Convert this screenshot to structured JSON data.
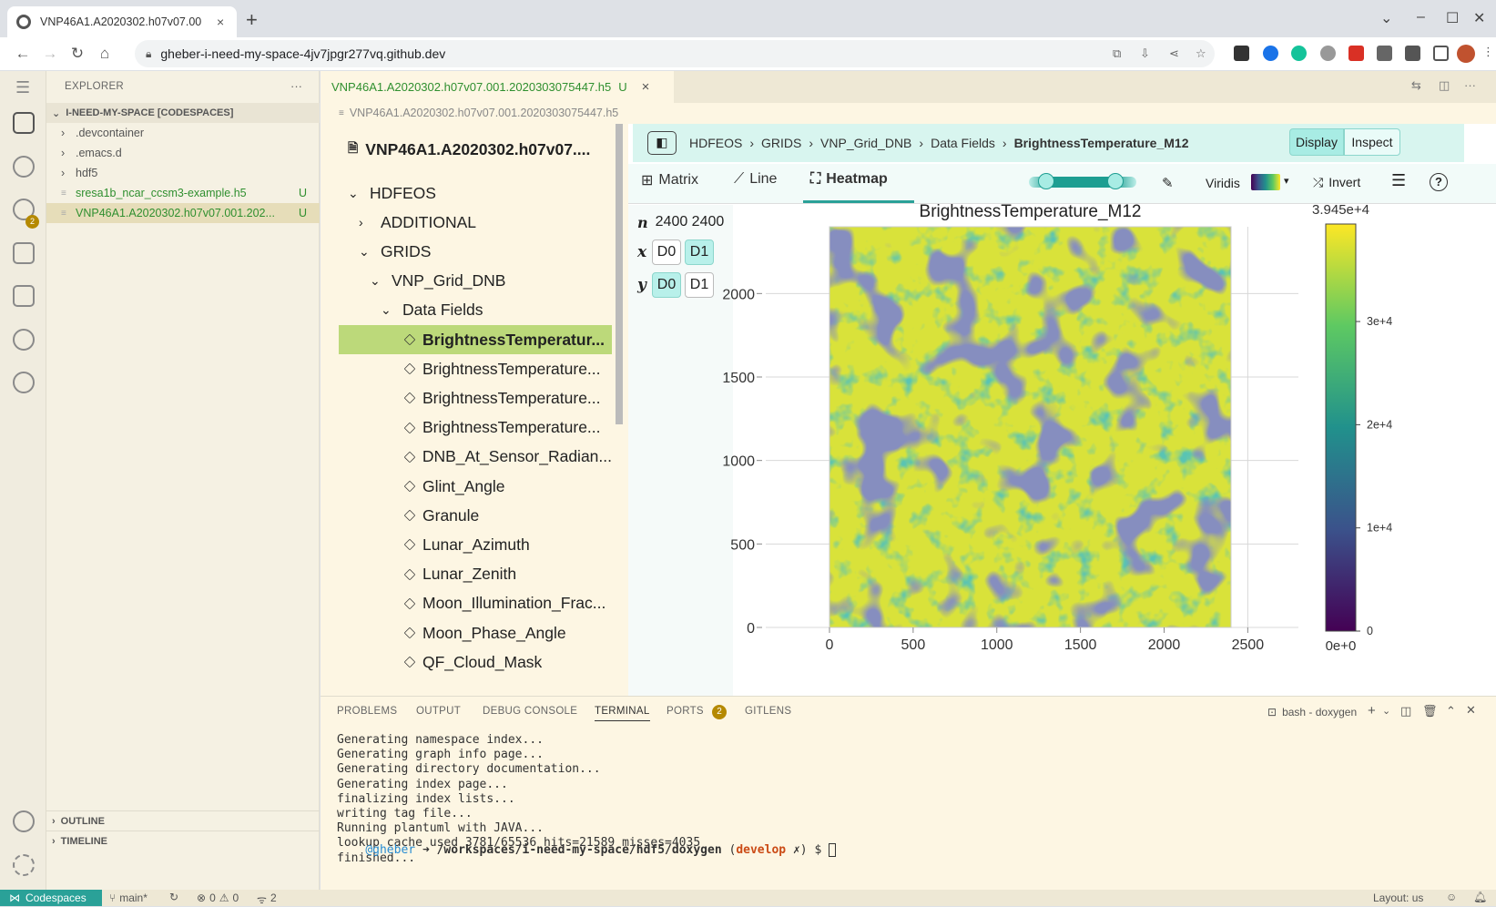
{
  "browser": {
    "tab_title": "VNP46A1.A2020302.h07v07.00",
    "new_tab": "+",
    "url": "gheber-i-need-my-space-4jv7jpgr277vq.github.dev"
  },
  "activity": {
    "scm_badge": "2"
  },
  "explorer": {
    "title": "EXPLORER",
    "more": "···",
    "root": "I-NEED-MY-SPACE [CODESPACES]",
    "items": [
      {
        "label": ".devcontainer",
        "status": "",
        "chev": "›"
      },
      {
        "label": ".emacs.d",
        "status": "",
        "chev": "›"
      },
      {
        "label": "hdf5",
        "status": "",
        "chev": "›"
      },
      {
        "label": "sresa1b_ncar_ccsm3-example.h5",
        "status": "U",
        "chev": ""
      },
      {
        "label": "VNP46A1.A2020302.h07v07.001.202...",
        "status": "U",
        "chev": ""
      }
    ],
    "outline": "OUTLINE",
    "timeline": "TIMELINE"
  },
  "editor": {
    "tab_label": "VNP46A1.A2020302.h07v07.001.2020303075447.h5",
    "tab_status": "U",
    "close": "×",
    "breadcrumb": "VNP46A1.A2020302.h07v07.001.2020303075447.h5"
  },
  "h5web": {
    "file_title": "VNP46A1.A2020302.h07v07....",
    "tree": [
      {
        "label": "HDFEOS",
        "chev": "⌄",
        "ds": false
      },
      {
        "label": "ADDITIONAL",
        "chev": "›",
        "ds": false
      },
      {
        "label": "GRIDS",
        "chev": "⌄",
        "ds": false
      },
      {
        "label": "VNP_Grid_DNB",
        "chev": "⌄",
        "ds": false
      },
      {
        "label": "Data Fields",
        "chev": "⌄",
        "ds": false
      },
      {
        "label": "BrightnessTemperatur...",
        "chev": "",
        "ds": true
      },
      {
        "label": "BrightnessTemperature...",
        "chev": "",
        "ds": true
      },
      {
        "label": "BrightnessTemperature...",
        "chev": "",
        "ds": true
      },
      {
        "label": "BrightnessTemperature...",
        "chev": "",
        "ds": true
      },
      {
        "label": "DNB_At_Sensor_Radian...",
        "chev": "",
        "ds": true
      },
      {
        "label": "Glint_Angle",
        "chev": "",
        "ds": true
      },
      {
        "label": "Granule",
        "chev": "",
        "ds": true
      },
      {
        "label": "Lunar_Azimuth",
        "chev": "",
        "ds": true
      },
      {
        "label": "Lunar_Zenith",
        "chev": "",
        "ds": true
      },
      {
        "label": "Moon_Illumination_Frac...",
        "chev": "",
        "ds": true
      },
      {
        "label": "Moon_Phase_Angle",
        "chev": "",
        "ds": true
      },
      {
        "label": "QF_Cloud_Mask",
        "chev": "",
        "ds": true
      }
    ],
    "path": [
      "HDFEOS",
      "GRIDS",
      "VNP_Grid_DNB",
      "Data Fields"
    ],
    "path_current": "BrightnessTemperature_M12",
    "display_label": "Display",
    "inspect_label": "Inspect",
    "vis_tabs": [
      "Matrix",
      "Line",
      "Heatmap"
    ],
    "colormap": "Viridis",
    "invert_label": "Invert",
    "dims": {
      "n_label": "n",
      "n_values": "2400 2400",
      "x_label": "x",
      "y_label": "y",
      "d0": "D0",
      "d1": "D1"
    }
  },
  "chart_data": {
    "type": "heatmap",
    "title": "BrightnessTemperature_M12",
    "x_ticks": [
      0,
      500,
      1000,
      1500,
      2000,
      2500
    ],
    "y_ticks": [
      0,
      500,
      1000,
      1500,
      2000
    ],
    "xlim": [
      0,
      2400
    ],
    "ylim": [
      0,
      2400
    ],
    "colorbar": {
      "max_label": "3.945e+4",
      "min_label": "0e+0",
      "ticks": [
        "3e+4",
        "2e+4",
        "1e+4",
        "0"
      ],
      "values": [
        30000,
        20000,
        10000,
        0
      ],
      "max": 39450,
      "colormap": "viridis"
    },
    "grid": true
  },
  "panel": {
    "tabs": [
      "PROBLEMS",
      "OUTPUT",
      "DEBUG CONSOLE",
      "TERMINAL",
      "PORTS",
      "GITLENS"
    ],
    "ports_badge": "2",
    "terminal_name": "bash - doxygen",
    "lines": [
      "Generating namespace index...",
      "Generating graph info page...",
      "Generating directory documentation...",
      "Generating index page...",
      "finalizing index lists...",
      "writing tag file...",
      "Running plantuml with JAVA...",
      "lookup cache used 3781/65536 hits=21589 misses=4035",
      "finished..."
    ],
    "prompt_user": "@gheber",
    "prompt_arrow": "➜",
    "prompt_path": "/workspaces/i-need-my-space/hdf5/doxygen",
    "prompt_branch": "develop",
    "prompt_dirty": "✗",
    "prompt_end": "$"
  },
  "status": {
    "remote": "Codespaces",
    "branch": "main*",
    "errors": "0",
    "warnings": "0",
    "ports": "2",
    "layout": "Layout: us"
  },
  "colors": {
    "accent_green": "#2f8f2f",
    "selection": "#bcd97a",
    "h5bar": "#d8f5ef",
    "panel_bg": "#fdf6e3",
    "remote_bg": "#2aa198"
  }
}
